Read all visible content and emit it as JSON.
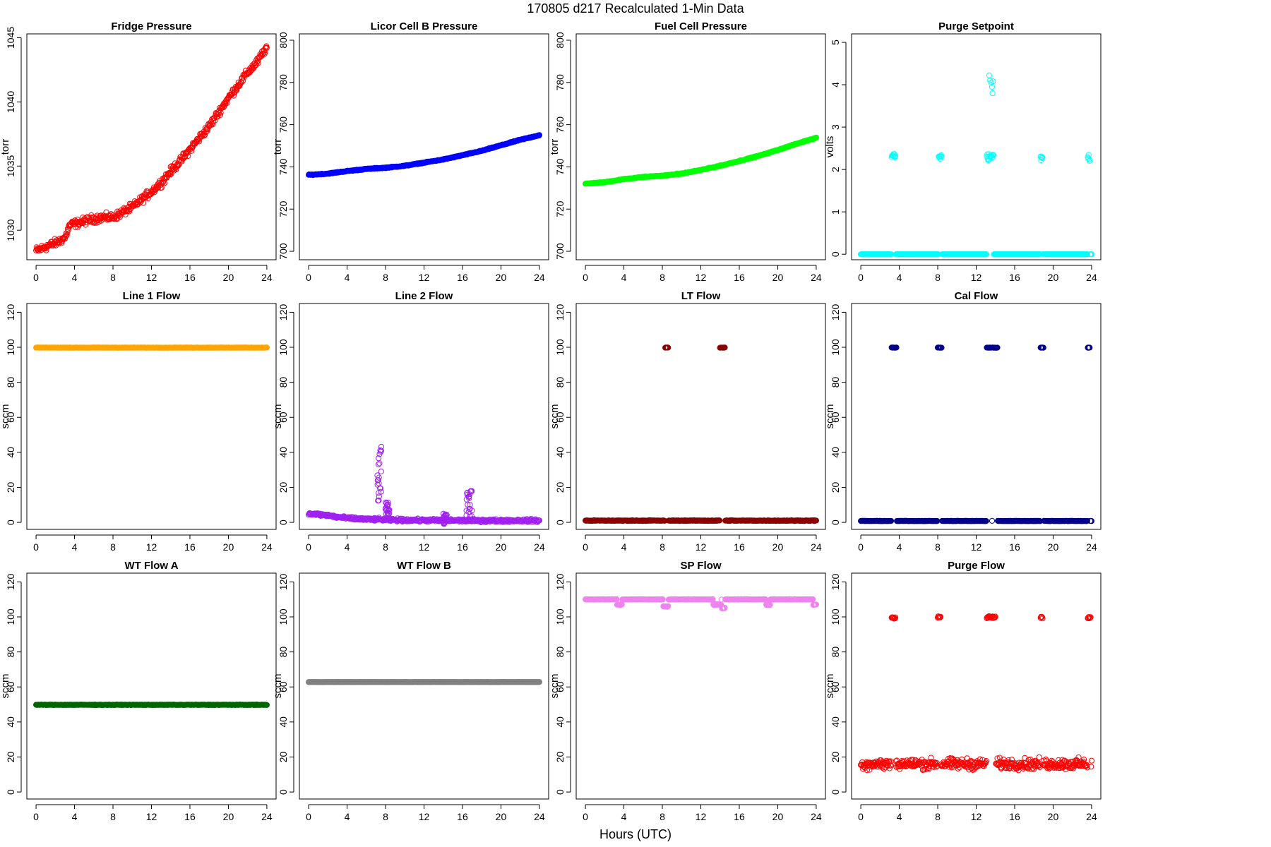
{
  "figure": {
    "title": "170805   d217   Recalculated 1-Min Data",
    "xlabel": "Hours (UTC)"
  },
  "chart_data": [
    {
      "type": "scatter",
      "title": "Fridge Pressure",
      "ylabel": "torr",
      "color": "#ff0000",
      "xlim": [
        0,
        24
      ],
      "xticks": [
        0,
        4,
        8,
        12,
        16,
        20,
        24
      ],
      "ylim": [
        1027.7,
        1045.3
      ],
      "yticks": [
        1030,
        1035,
        1040,
        1045
      ],
      "series": [
        {
          "x": [
            0,
            1,
            2,
            3,
            3.5,
            4,
            5,
            6,
            7,
            8,
            9,
            10,
            11,
            12,
            13,
            14,
            15,
            16,
            17,
            18,
            19,
            20,
            21,
            22,
            23,
            24
          ],
          "y": [
            1028.4,
            1028.7,
            1029.0,
            1029.4,
            1030.4,
            1030.5,
            1030.7,
            1030.9,
            1031.0,
            1031.0,
            1031.4,
            1031.8,
            1032.4,
            1033.0,
            1033.7,
            1034.6,
            1035.4,
            1036.3,
            1037.2,
            1038.1,
            1039.2,
            1040.3,
            1041.3,
            1042.3,
            1043.1,
            1044.3
          ],
          "noise": 0.45
        }
      ]
    },
    {
      "type": "scatter",
      "title": "Licor Cell B Pressure",
      "ylabel": "torr",
      "color": "#0000ff",
      "xlim": [
        0,
        24
      ],
      "xticks": [
        0,
        4,
        8,
        12,
        16,
        20,
        24
      ],
      "ylim": [
        696,
        803
      ],
      "yticks": [
        700,
        720,
        740,
        760,
        780,
        800
      ],
      "series": [
        {
          "x": [
            0,
            2,
            4,
            6,
            8,
            10,
            12,
            14,
            16,
            18,
            20,
            22,
            24
          ],
          "y": [
            736.2,
            736.8,
            738.0,
            739.0,
            739.6,
            740.5,
            742.0,
            743.5,
            745.5,
            747.6,
            750.2,
            752.8,
            755.0
          ],
          "noise": 0.3
        }
      ]
    },
    {
      "type": "scatter",
      "title": "Fuel Cell Pressure",
      "ylabel": "torr",
      "color": "#00ff00",
      "xlim": [
        0,
        24
      ],
      "xticks": [
        0,
        4,
        8,
        12,
        16,
        20,
        24
      ],
      "ylim": [
        696,
        803
      ],
      "yticks": [
        700,
        720,
        740,
        760,
        780,
        800
      ],
      "series": [
        {
          "x": [
            0,
            2,
            4,
            6,
            8,
            10,
            12,
            14,
            16,
            18,
            20,
            22,
            24
          ],
          "y": [
            732.0,
            732.7,
            734.2,
            735.2,
            735.8,
            736.8,
            738.5,
            740.5,
            742.8,
            745.2,
            748.0,
            751.0,
            753.8
          ],
          "noise": 0.3
        }
      ]
    },
    {
      "type": "scatter",
      "title": "Purge Setpoint",
      "ylabel": "volts",
      "color": "#00ffff",
      "xlim": [
        0,
        24
      ],
      "xticks": [
        0,
        4,
        8,
        12,
        16,
        20,
        24
      ],
      "ylim": [
        -0.13,
        5.2
      ],
      "yticks": [
        0,
        1,
        2,
        3,
        4,
        5
      ],
      "series": [
        {
          "baseline": 0,
          "bursts": [
            {
              "x0": 3.2,
              "x1": 3.6,
              "y": 2.32
            },
            {
              "x0": 8.1,
              "x1": 8.4,
              "y": 2.3
            },
            {
              "x0": 13.1,
              "x1": 13.8,
              "y": 2.3
            },
            {
              "x0": 18.7,
              "x1": 18.9,
              "y": 2.27
            },
            {
              "x0": 23.6,
              "x1": 23.8,
              "y": 2.28
            }
          ],
          "extra": {
            "x": [
              13.35,
              13.45,
              13.55,
              13.65,
              13.7,
              13.75
            ],
            "y": [
              4.22,
              4.1,
              4.05,
              3.95,
              3.8,
              4.08
            ]
          }
        }
      ]
    },
    {
      "type": "scatter",
      "title": "Line 1 Flow",
      "ylabel": "sccm",
      "color": "#ffa500",
      "xlim": [
        0,
        24
      ],
      "xticks": [
        0,
        4,
        8,
        12,
        16,
        20,
        24
      ],
      "ylim": [
        -4,
        125
      ],
      "yticks": [
        0,
        20,
        40,
        60,
        80,
        100,
        120
      ],
      "series": [
        {
          "constant": 99.8,
          "noise": 0.1
        }
      ]
    },
    {
      "type": "scatter",
      "title": "Line 2 Flow",
      "ylabel": "sccm",
      "color": "#a020f0",
      "xlim": [
        0,
        24
      ],
      "xticks": [
        0,
        4,
        8,
        12,
        16,
        20,
        24
      ],
      "ylim": [
        -4,
        125
      ],
      "yticks": [
        0,
        20,
        40,
        60,
        80,
        100,
        120
      ],
      "series": [
        {
          "x": [
            0,
            1,
            2,
            3,
            4,
            5,
            6,
            7,
            8,
            10,
            12,
            14,
            16,
            18,
            20,
            22,
            24
          ],
          "y": [
            5,
            4.5,
            4,
            3,
            2.5,
            2,
            1.8,
            1.7,
            1.5,
            1.3,
            1.2,
            1.1,
            1.1,
            1.0,
            1.0,
            1.1,
            1.0
          ],
          "noise": 1.2,
          "spikes": [
            {
              "x0": 7.1,
              "x1": 7.6,
              "ymin": 12,
              "ymax": 45
            },
            {
              "x0": 8.0,
              "x1": 8.4,
              "ymin": 3,
              "ymax": 12
            },
            {
              "x0": 16.4,
              "x1": 17.0,
              "ymin": 3,
              "ymax": 18
            },
            {
              "x0": 14.0,
              "x1": 14.4,
              "ymin": -1,
              "ymax": 5
            }
          ]
        }
      ]
    },
    {
      "type": "scatter",
      "title": "LT Flow",
      "ylabel": "sccm",
      "color": "#8b0000",
      "xlim": [
        0,
        24
      ],
      "xticks": [
        0,
        4,
        8,
        12,
        16,
        20,
        24
      ],
      "ylim": [
        -4,
        125
      ],
      "yticks": [
        0,
        20,
        40,
        60,
        80,
        100,
        120
      ],
      "series": [
        {
          "baseline": 1,
          "noise": 0.3,
          "bursts": [
            {
              "x0": 8.3,
              "x1": 8.6,
              "y": 99.8
            },
            {
              "x0": 14.0,
              "x1": 14.5,
              "y": 99.8
            }
          ]
        }
      ]
    },
    {
      "type": "scatter",
      "title": "Cal Flow",
      "ylabel": "sccm",
      "color": "#00008b",
      "xlim": [
        0,
        24
      ],
      "xticks": [
        0,
        4,
        8,
        12,
        16,
        20,
        24
      ],
      "ylim": [
        -4,
        125
      ],
      "yticks": [
        0,
        20,
        40,
        60,
        80,
        100,
        120
      ],
      "series": [
        {
          "baseline": 0.8,
          "noise": 0.15,
          "bursts": [
            {
              "x0": 3.2,
              "x1": 3.7,
              "y": 99.8
            },
            {
              "x0": 8.0,
              "x1": 8.4,
              "y": 99.8
            },
            {
              "x0": 13.1,
              "x1": 13.6,
              "y": 99.8
            },
            {
              "x0": 13.7,
              "x1": 14.2,
              "y": 99.8
            },
            {
              "x0": 18.7,
              "x1": 19.0,
              "y": 99.8
            },
            {
              "x0": 23.6,
              "x1": 23.8,
              "y": 99.8
            }
          ]
        }
      ]
    },
    {
      "type": "scatter",
      "title": "WT Flow A",
      "ylabel": "sccm",
      "color": "#006400",
      "xlim": [
        0,
        24
      ],
      "xticks": [
        0,
        4,
        8,
        12,
        16,
        20,
        24
      ],
      "ylim": [
        -4,
        125
      ],
      "yticks": [
        0,
        20,
        40,
        60,
        80,
        100,
        120
      ],
      "series": [
        {
          "constant": 49.8,
          "noise": 0.2
        }
      ]
    },
    {
      "type": "scatter",
      "title": "WT Flow B",
      "ylabel": "sccm",
      "color": "#808080",
      "xlim": [
        0,
        24
      ],
      "xticks": [
        0,
        4,
        8,
        12,
        16,
        20,
        24
      ],
      "ylim": [
        -4,
        125
      ],
      "yticks": [
        0,
        20,
        40,
        60,
        80,
        100,
        120
      ],
      "series": [
        {
          "constant": 62.8,
          "noise": 0.1
        }
      ]
    },
    {
      "type": "scatter",
      "title": "SP Flow",
      "ylabel": "sccm",
      "color": "#ee82ee",
      "xlim": [
        0,
        24
      ],
      "xticks": [
        0,
        4,
        8,
        12,
        16,
        20,
        24
      ],
      "ylim": [
        -4,
        125
      ],
      "yticks": [
        0,
        20,
        40,
        60,
        80,
        100,
        120
      ],
      "series": [
        {
          "baseline": 110,
          "noise": 0.2,
          "dips": [
            {
              "x0": 3.3,
              "x1": 3.8,
              "y": 107
            },
            {
              "x0": 8.1,
              "x1": 8.6,
              "y": 106
            },
            {
              "x0": 13.3,
              "x1": 14.1,
              "y": 107
            },
            {
              "x0": 14.2,
              "x1": 14.5,
              "y": 105
            },
            {
              "x0": 18.8,
              "x1": 19.2,
              "y": 107
            },
            {
              "x0": 23.7,
              "x1": 24.0,
              "y": 107
            }
          ]
        }
      ]
    },
    {
      "type": "scatter",
      "title": "Purge Flow",
      "ylabel": "sccm",
      "color": "#ff0000",
      "xlim": [
        0,
        24
      ],
      "xticks": [
        0,
        4,
        8,
        12,
        16,
        20,
        24
      ],
      "ylim": [
        -4,
        125
      ],
      "yticks": [
        0,
        20,
        40,
        60,
        80,
        100,
        120
      ],
      "series": [
        {
          "baseline": 16,
          "noise": 4.5,
          "bursts": [
            {
              "x0": 3.2,
              "x1": 3.6,
              "y": 99.5
            },
            {
              "x0": 8.0,
              "x1": 8.3,
              "y": 100
            },
            {
              "x0": 13.1,
              "x1": 14.0,
              "y": 99.8
            },
            {
              "x0": 18.7,
              "x1": 18.9,
              "y": 99.5
            },
            {
              "x0": 23.6,
              "x1": 23.9,
              "y": 99.5
            }
          ]
        }
      ]
    }
  ]
}
